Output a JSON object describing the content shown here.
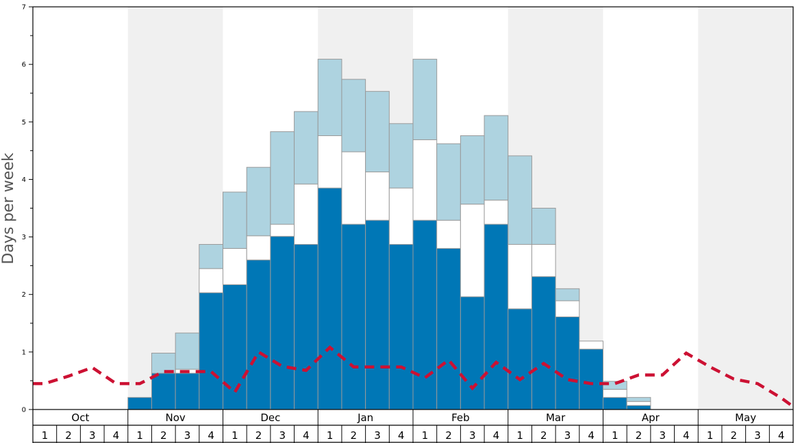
{
  "chart_data": {
    "type": "bar",
    "stacked": true,
    "ylabel": "Days per week",
    "ylim": [
      0,
      7
    ],
    "yticks": [
      "0",
      "1",
      "2",
      "3",
      "4",
      "5",
      "6",
      "7"
    ],
    "months": [
      "Oct",
      "Nov",
      "Dec",
      "Jan",
      "Feb",
      "Mar",
      "Apr",
      "May"
    ],
    "weeks": [
      "1",
      "2",
      "3",
      "4"
    ],
    "shaded_months": [
      "Nov",
      "Jan",
      "Mar",
      "May"
    ],
    "grid": false,
    "colors": {
      "series1": "#0077b6",
      "series2": "#ffffff",
      "series3": "#aed3e0",
      "line": "#cc1133",
      "shade": "#f0f0f0",
      "bar_edge": "#999999"
    },
    "series": [
      {
        "values": [
          0,
          0,
          0,
          0,
          0.21,
          0.63,
          0.63,
          2.03,
          2.17,
          2.6,
          3.01,
          2.87,
          3.85,
          3.22,
          3.29,
          2.87,
          3.29,
          2.8,
          1.96,
          3.22,
          1.75,
          2.31,
          1.61,
          1.05,
          0.21,
          0.07,
          0,
          0,
          0,
          0,
          0,
          0
        ]
      },
      {
        "values": [
          0,
          0,
          0,
          0,
          0,
          0,
          0.07,
          0.42,
          0.63,
          0.42,
          0.21,
          1.05,
          0.91,
          1.26,
          0.84,
          0.98,
          1.4,
          0.49,
          1.61,
          0.42,
          1.12,
          0.56,
          0.28,
          0.14,
          0.14,
          0.07,
          0,
          0,
          0,
          0,
          0,
          0
        ]
      },
      {
        "values": [
          0,
          0,
          0,
          0,
          0,
          0.35,
          0.63,
          0.42,
          0.98,
          1.19,
          1.61,
          1.26,
          1.33,
          1.26,
          1.4,
          1.12,
          1.4,
          1.33,
          1.19,
          1.47,
          1.54,
          0.63,
          0.21,
          0,
          0.14,
          0.07,
          0,
          0,
          0,
          0,
          0,
          0
        ]
      }
    ],
    "line": {
      "values": [
        0.45,
        0.58,
        0.73,
        0.45,
        0.45,
        0.66,
        0.66,
        0.66,
        0.3,
        1.0,
        0.75,
        0.68,
        1.08,
        0.74,
        0.74,
        0.74,
        0.55,
        0.86,
        0.37,
        0.82,
        0.52,
        0.8,
        0.52,
        0.45,
        0.45,
        0.6,
        0.6,
        0.98,
        0.74,
        0.53,
        0.45,
        0.2
      ]
    }
  }
}
